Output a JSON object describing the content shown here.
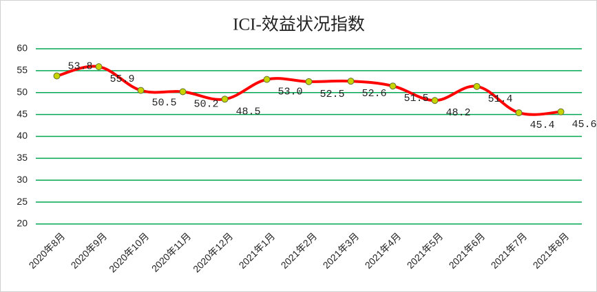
{
  "chart_data": {
    "type": "line",
    "title": "ICI-效益状况指数",
    "categories": [
      "2020年8月",
      "2020年9月",
      "2020年10月",
      "2020年11月",
      "2020年12月",
      "2021年1月",
      "2021年2月",
      "2021年3月",
      "2021年4月",
      "2021年5月",
      "2021年6月",
      "2021年7月",
      "2021年8月"
    ],
    "series": [
      {
        "name": "ICI-效益状况指数",
        "color": "#ff0000",
        "values": [
          53.8,
          55.9,
          50.5,
          50.2,
          48.5,
          53.0,
          52.5,
          52.6,
          51.5,
          48.2,
          51.4,
          45.4,
          45.6
        ],
        "value_labels": [
          "53.8",
          "55.9",
          "50.5",
          "50.2",
          "48.5",
          "53.0",
          "52.5",
          "52.6",
          "51.5",
          "48.2",
          "51.4",
          "45.4",
          "45.6"
        ]
      }
    ],
    "ylim": [
      20,
      60
    ],
    "yticks": [
      20,
      25,
      30,
      35,
      40,
      45,
      50,
      55,
      60
    ],
    "grid": true,
    "grid_color": "#00a550",
    "marker_color": "#c8d400"
  }
}
